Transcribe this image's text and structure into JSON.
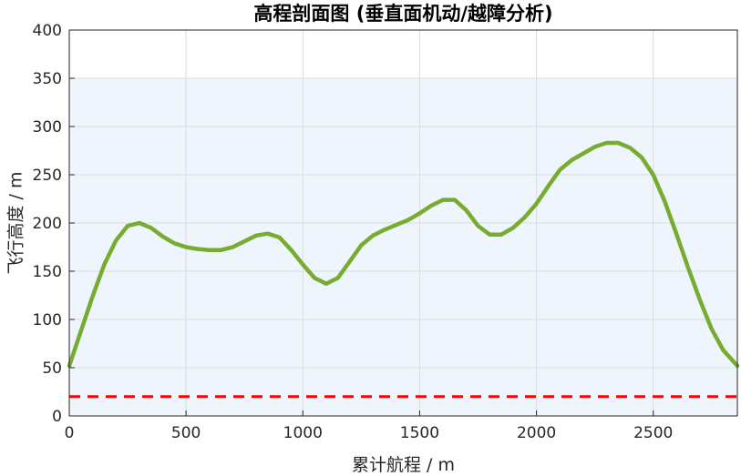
{
  "chart_data": {
    "type": "line",
    "title": "高程剖面图 (垂直面机动/越障分析)",
    "xlabel": "累计航程 / m",
    "ylabel": "飞行高度 / m",
    "xlim": [
      0,
      2860
    ],
    "ylim": [
      0,
      400
    ],
    "xticks": [
      0,
      500,
      1000,
      1500,
      2000,
      2500
    ],
    "yticks": [
      0,
      50,
      100,
      150,
      200,
      250,
      300,
      350,
      400
    ],
    "grid": true,
    "band": {
      "y_from": 0,
      "y_to": 350,
      "color": "#eef5fc"
    },
    "series": [
      {
        "color": "#77ac30",
        "style": "solid",
        "x": [
          0,
          50,
          100,
          150,
          200,
          250,
          300,
          350,
          400,
          450,
          500,
          550,
          600,
          650,
          700,
          750,
          800,
          850,
          900,
          950,
          1000,
          1050,
          1100,
          1150,
          1200,
          1250,
          1300,
          1350,
          1400,
          1450,
          1500,
          1550,
          1600,
          1650,
          1700,
          1750,
          1800,
          1850,
          1900,
          1950,
          2000,
          2050,
          2100,
          2150,
          2200,
          2250,
          2300,
          2350,
          2400,
          2450,
          2500,
          2550,
          2600,
          2650,
          2700,
          2750,
          2800,
          2860
        ],
        "y": [
          52,
          88,
          124,
          157,
          182,
          197,
          200,
          195,
          186,
          179,
          175,
          173,
          172,
          172,
          175,
          181,
          187,
          189,
          185,
          172,
          157,
          143,
          137,
          143,
          160,
          177,
          187,
          193,
          198,
          203,
          210,
          218,
          224,
          224,
          213,
          197,
          188,
          188,
          195,
          206,
          220,
          238,
          255,
          265,
          272,
          279,
          283,
          283,
          278,
          268,
          250,
          222,
          188,
          153,
          120,
          90,
          68,
          52
        ]
      },
      {
        "color": "#ff0000",
        "style": "dashed",
        "x": [
          0,
          2860
        ],
        "y": [
          20,
          20
        ]
      }
    ]
  }
}
